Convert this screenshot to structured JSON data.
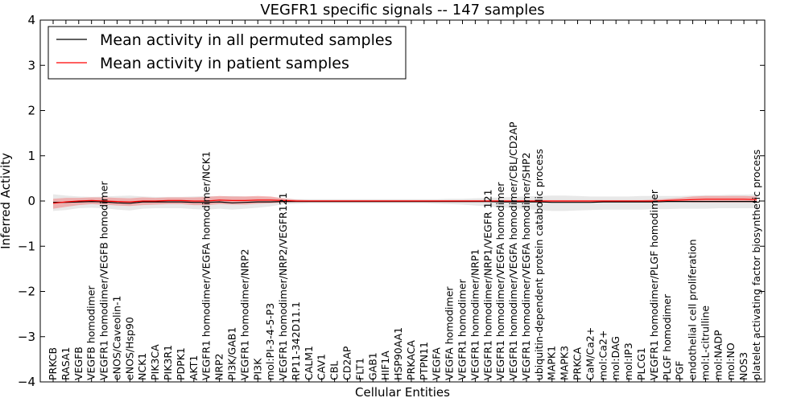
{
  "chart_data": {
    "type": "line",
    "title": "VEGFR1 specific signals -- 147 samples",
    "xlabel": "Cellular Entities",
    "ylabel": "Inferred Activity",
    "ylim": [
      -4,
      4
    ],
    "yticks": [
      "4",
      "3",
      "2",
      "1",
      "0",
      "−1",
      "−2",
      "−3",
      "−4"
    ],
    "grid": false,
    "legend_position": "top-left",
    "categories": [
      "PRKCB",
      "RASA1",
      "VEGFB",
      "VEGFB homodimer",
      "VEGFR1 homodimer/VEGFB homodimer",
      "eNOS/Caveolin-1",
      "eNOS/Hsp90",
      "NCK1",
      "PIK3CA",
      "PIK3R1",
      "PDPK1",
      "AKT1",
      "VEGFR1 homodimer/VEGFA homodimer/NCK1",
      "NRP2",
      "PI3K/GAB1",
      "VEGFR1 homodimer/NRP2",
      "PI3K",
      "mol:PI-3-4-5-P3",
      "VEGFR1 homodimer/NRP2/VEGFR121",
      "RP11-342D11.1",
      "CALM1",
      "CAV1",
      "CBL",
      "CD2AP",
      "FLT1",
      "GAB1",
      "HIF1A",
      "HSP90AA1",
      "PRKACA",
      "PTPN11",
      "VEGFA",
      "VEGFA homodimer",
      "VEGFR1 homodimer",
      "VEGFR1 homodimer/NRP1",
      "VEGFR1 homodimer/NRP1/VEGFR 121",
      "VEGFR1 homodimer/VEGFA homodimer",
      "VEGFR1 homodimer/VEGFA homodimer/CBL/CD2AP",
      "VEGFR1 homodimer/VEGFA homodimer/SHP2",
      "ubiquitin-dependent protein catabolic process",
      "MAPK1",
      "MAPK3",
      "PRKCA",
      "CaM/Ca2+",
      "mol:Ca2+",
      "mol:DAG",
      "mol:IP3",
      "PLCG1",
      "VEGFR1 homodimer/PLGF homodimer",
      "PLGF homodimer",
      "PGF",
      "endothelial cell proliferation",
      "mol:L-citrulline",
      "mol:NADP",
      "mol:NO",
      "NOS3",
      "platelet activating factor biosynthetic process"
    ],
    "series": [
      {
        "name": "Mean activity in all permuted samples",
        "color": "#000000",
        "band_color": "#d9d9d9",
        "values": [
          -0.03,
          -0.03,
          -0.02,
          -0.01,
          -0.02,
          -0.04,
          -0.05,
          -0.02,
          -0.02,
          -0.02,
          -0.02,
          -0.03,
          -0.03,
          -0.02,
          -0.04,
          -0.03,
          -0.02,
          -0.02,
          -0.01,
          -0.01,
          -0.01,
          -0.01,
          -0.01,
          -0.01,
          -0.01,
          -0.01,
          -0.01,
          -0.01,
          -0.01,
          -0.01,
          -0.01,
          -0.01,
          -0.01,
          -0.01,
          -0.01,
          -0.02,
          -0.02,
          -0.02,
          -0.02,
          -0.03,
          -0.03,
          -0.03,
          -0.03,
          -0.02,
          -0.02,
          -0.02,
          -0.02,
          -0.02,
          -0.01,
          -0.01,
          -0.01,
          -0.01,
          -0.01,
          -0.01,
          -0.01,
          -0.01
        ],
        "band_upper": [
          0.15,
          0.12,
          0.1,
          0.09,
          0.1,
          0.11,
          0.12,
          0.1,
          0.09,
          0.09,
          0.09,
          0.1,
          0.11,
          0.1,
          0.11,
          0.1,
          0.09,
          0.08,
          0.05,
          0.04,
          0.04,
          0.04,
          0.04,
          0.04,
          0.04,
          0.04,
          0.04,
          0.04,
          0.04,
          0.04,
          0.04,
          0.05,
          0.05,
          0.06,
          0.07,
          0.08,
          0.09,
          0.1,
          0.11,
          0.12,
          0.12,
          0.11,
          0.1,
          0.1,
          0.1,
          0.1,
          0.11,
          0.11,
          0.11,
          0.11,
          0.12,
          0.13,
          0.13,
          0.14,
          0.14,
          0.15
        ],
        "band_lower": [
          -0.22,
          -0.2,
          -0.16,
          -0.15,
          -0.16,
          -0.19,
          -0.21,
          -0.17,
          -0.16,
          -0.16,
          -0.16,
          -0.18,
          -0.19,
          -0.17,
          -0.19,
          -0.17,
          -0.15,
          -0.12,
          -0.07,
          -0.06,
          -0.05,
          -0.05,
          -0.05,
          -0.05,
          -0.05,
          -0.05,
          -0.05,
          -0.05,
          -0.05,
          -0.05,
          -0.06,
          -0.07,
          -0.08,
          -0.1,
          -0.12,
          -0.14,
          -0.16,
          -0.18,
          -0.2,
          -0.22,
          -0.22,
          -0.21,
          -0.2,
          -0.19,
          -0.19,
          -0.19,
          -0.19,
          -0.18,
          -0.18,
          -0.17,
          -0.17,
          -0.17,
          -0.16,
          -0.16,
          -0.16,
          -0.16
        ]
      },
      {
        "name": "Mean activity in patient samples",
        "color": "#ff0000",
        "band_color": "#f08080",
        "values": [
          -0.05,
          -0.02,
          0.0,
          0.01,
          0.0,
          -0.01,
          -0.02,
          0.0,
          0.0,
          0.01,
          0.01,
          0.0,
          0.0,
          0.02,
          0.01,
          0.01,
          0.02,
          0.02,
          0.01,
          0.0,
          0.0,
          0.0,
          0.0,
          0.0,
          0.0,
          0.0,
          0.0,
          0.0,
          0.0,
          0.0,
          0.0,
          0.0,
          0.0,
          0.0,
          0.0,
          0.0,
          0.0,
          0.0,
          0.0,
          0.0,
          0.0,
          0.0,
          0.0,
          0.0,
          0.0,
          0.0,
          0.0,
          0.0,
          0.01,
          0.02,
          0.03,
          0.04,
          0.04,
          0.04,
          0.04,
          0.03
        ],
        "band_upper": [
          0.05,
          0.07,
          0.07,
          0.08,
          0.08,
          0.07,
          0.06,
          0.08,
          0.07,
          0.08,
          0.08,
          0.08,
          0.09,
          0.11,
          0.1,
          0.1,
          0.11,
          0.1,
          0.06,
          0.03,
          0.02,
          0.02,
          0.02,
          0.02,
          0.02,
          0.02,
          0.02,
          0.02,
          0.02,
          0.02,
          0.02,
          0.02,
          0.02,
          0.02,
          0.02,
          0.02,
          0.02,
          0.02,
          0.02,
          0.02,
          0.02,
          0.02,
          0.02,
          0.02,
          0.02,
          0.02,
          0.02,
          0.03,
          0.05,
          0.07,
          0.1,
          0.11,
          0.11,
          0.11,
          0.11,
          0.1
        ],
        "band_lower": [
          -0.17,
          -0.13,
          -0.09,
          -0.07,
          -0.08,
          -0.1,
          -0.11,
          -0.09,
          -0.08,
          -0.07,
          -0.07,
          -0.09,
          -0.09,
          -0.07,
          -0.08,
          -0.08,
          -0.06,
          -0.05,
          -0.03,
          -0.02,
          -0.02,
          -0.02,
          -0.02,
          -0.02,
          -0.02,
          -0.02,
          -0.02,
          -0.02,
          -0.02,
          -0.02,
          -0.02,
          -0.02,
          -0.02,
          -0.02,
          -0.02,
          -0.02,
          -0.02,
          -0.02,
          -0.02,
          -0.02,
          -0.02,
          -0.02,
          -0.02,
          -0.02,
          -0.02,
          -0.02,
          -0.02,
          -0.02,
          -0.02,
          -0.02,
          -0.03,
          -0.03,
          -0.03,
          -0.03,
          -0.03,
          -0.03
        ]
      }
    ]
  }
}
